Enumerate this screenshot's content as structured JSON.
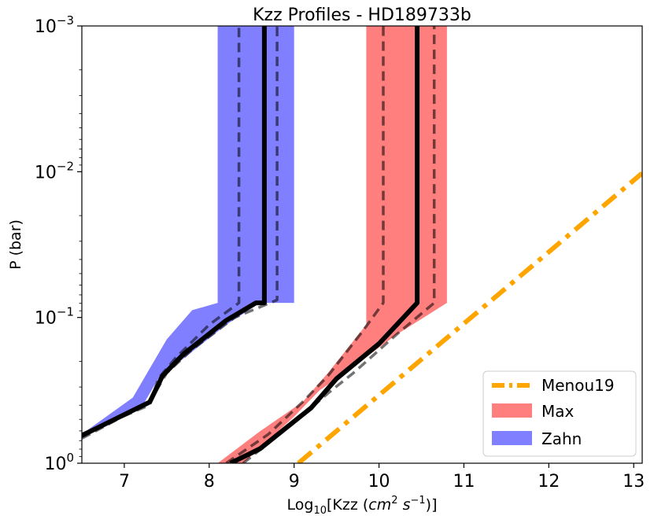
{
  "chart_data": {
    "type": "line",
    "title": "Kzz Profiles - HD189733b",
    "xlabel": {
      "pre": "Log",
      "sub": "10",
      "mid": "[Kzz (",
      "unit_cm": "cm",
      "exp2": "2",
      "unit_s": " s",
      "exp_neg1": "−1",
      "post": ")]"
    },
    "ylabel": "P (bar)",
    "xlim": [
      6.5,
      13.1
    ],
    "ylim_log10": [
      0,
      -3
    ],
    "y_scale": "log",
    "y_inverted": true,
    "x_ticks": [
      "7",
      "8",
      "9",
      "10",
      "11",
      "12",
      "13"
    ],
    "y_ticks": [
      {
        "base": "10",
        "exp": "0",
        "log10": 0
      },
      {
        "base": "10",
        "exp": "−1",
        "log10": -1
      },
      {
        "base": "10",
        "exp": "−2",
        "log10": -2
      },
      {
        "base": "10",
        "exp": "−3",
        "log10": -3
      }
    ],
    "legend_position": "bottom-right",
    "colors": {
      "zahn": "#0000ff",
      "max": "#ff0000",
      "menou": "#ffa500",
      "profile": "#000000"
    },
    "series": [
      {
        "name": "Zahn",
        "style": "band",
        "upper_x": [
          6.5,
          7.2,
          7.4,
          7.7,
          8.2,
          8.6,
          9.0,
          9.0
        ],
        "upper_logP": [
          -0.17,
          -0.38,
          -0.58,
          -0.72,
          -0.95,
          -1.1,
          -1.1,
          -3
        ],
        "lower_x": [
          6.5,
          7.1,
          7.3,
          7.5,
          7.8,
          8.1,
          8.1
        ],
        "lower_logP": [
          -0.2,
          -0.45,
          -0.65,
          -0.85,
          -1.05,
          -1.1,
          -3
        ]
      },
      {
        "name": "Max",
        "style": "band",
        "upper_x": [
          8.4,
          9.0,
          9.3,
          9.6,
          10.2,
          10.8,
          10.8
        ],
        "upper_logP": [
          0,
          -0.32,
          -0.5,
          -0.62,
          -0.88,
          -1.1,
          -3
        ],
        "lower_x": [
          8.1,
          8.6,
          9.1,
          9.4,
          9.85,
          9.85
        ],
        "lower_logP": [
          0,
          -0.22,
          -0.42,
          -0.62,
          -0.95,
          -3
        ]
      },
      {
        "name": "Menou19",
        "style": "dashdot",
        "x": [
          9.05,
          13.1
        ],
        "logP": [
          0,
          -1.99
        ]
      }
    ],
    "profiles": [
      {
        "band": "Zahn",
        "style": "solid",
        "x": [
          6.5,
          7.3,
          7.45,
          7.7,
          8.2,
          8.55,
          8.65,
          8.65
        ],
        "logP": [
          -0.19,
          -0.42,
          -0.6,
          -0.75,
          -0.98,
          -1.1,
          -1.1,
          -3
        ]
      },
      {
        "band": "Zahn",
        "style": "dashed",
        "x": [
          6.5,
          7.3,
          7.5,
          7.8,
          8.3,
          8.8,
          8.8
        ],
        "logP": [
          -0.17,
          -0.42,
          -0.62,
          -0.78,
          -1.0,
          -1.12,
          -3
        ]
      },
      {
        "band": "Zahn",
        "style": "dashed",
        "x": [
          6.5,
          7.3,
          7.4,
          7.6,
          8.0,
          8.35,
          8.35
        ],
        "logP": [
          -0.2,
          -0.4,
          -0.58,
          -0.72,
          -0.95,
          -1.1,
          -3
        ]
      },
      {
        "band": "Max",
        "style": "solid",
        "x": [
          8.25,
          8.6,
          9.2,
          9.5,
          10.0,
          10.45,
          10.45
        ],
        "logP": [
          0,
          -0.1,
          -0.38,
          -0.58,
          -0.82,
          -1.1,
          -3
        ]
      },
      {
        "band": "Max",
        "style": "dashed",
        "x": [
          8.4,
          9.0,
          9.4,
          9.7,
          10.2,
          10.65,
          10.65
        ],
        "logP": [
          0,
          -0.28,
          -0.48,
          -0.62,
          -0.88,
          -1.1,
          -3
        ]
      },
      {
        "band": "Max",
        "style": "dashed",
        "x": [
          8.2,
          8.7,
          9.1,
          9.4,
          9.8,
          10.05,
          10.05
        ],
        "logP": [
          0,
          -0.2,
          -0.42,
          -0.6,
          -0.9,
          -1.1,
          -3
        ]
      }
    ]
  }
}
